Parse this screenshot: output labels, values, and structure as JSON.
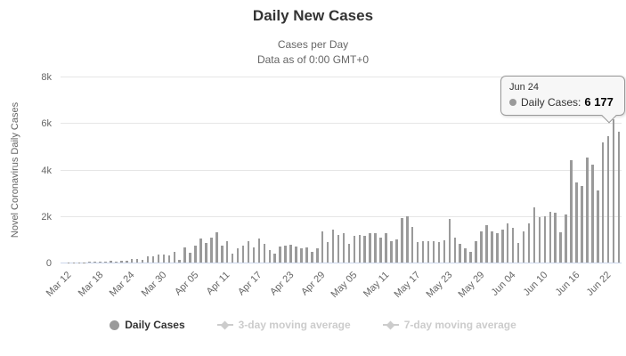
{
  "header": {
    "title": "Daily New Cases",
    "subtitle1": "Cases per Day",
    "subtitle2": "Data as of 0:00 GMT+0"
  },
  "y_axis": {
    "title": "Novel Coronavirus Daily Cases",
    "ticks": [
      {
        "label": "8k",
        "value": 8000
      },
      {
        "label": "6k",
        "value": 6000
      },
      {
        "label": "4k",
        "value": 4000
      },
      {
        "label": "2k",
        "value": 2000
      },
      {
        "label": "0",
        "value": 0
      }
    ]
  },
  "x_axis": {
    "ticks": [
      {
        "label": "Mar 12",
        "index": 0
      },
      {
        "label": "Mar 18",
        "index": 6
      },
      {
        "label": "Mar 24",
        "index": 12
      },
      {
        "label": "Mar 30",
        "index": 18
      },
      {
        "label": "Apr 05",
        "index": 24
      },
      {
        "label": "Apr 11",
        "index": 30
      },
      {
        "label": "Apr 17",
        "index": 36
      },
      {
        "label": "Apr 23",
        "index": 42
      },
      {
        "label": "Apr 29",
        "index": 48
      },
      {
        "label": "May 05",
        "index": 54
      },
      {
        "label": "May 11",
        "index": 60
      },
      {
        "label": "May 17",
        "index": 66
      },
      {
        "label": "May 23",
        "index": 72
      },
      {
        "label": "May 29",
        "index": 78
      },
      {
        "label": "Jun 04",
        "index": 84
      },
      {
        "label": "Jun 10",
        "index": 90
      },
      {
        "label": "Jun 16",
        "index": 96
      },
      {
        "label": "Jun 22",
        "index": 102
      }
    ]
  },
  "tooltip": {
    "date": "Jun 24",
    "series": "Daily Cases:",
    "value": "6 177"
  },
  "legend": [
    {
      "label": "Daily Cases",
      "enabled": true
    },
    {
      "label": "3-day moving average",
      "enabled": false
    },
    {
      "label": "7-day moving average",
      "enabled": false
    }
  ],
  "colors": {
    "bar": "#9a9a9a",
    "grid": "#e6e6e6",
    "axis_line": "#ccd6eb",
    "text": "#333333",
    "muted": "#666666",
    "disabled": "#cccccc",
    "tooltip_border": "#999999"
  },
  "chart_data": {
    "type": "bar",
    "title": "Daily New Cases",
    "subtitle": [
      "Cases per Day",
      "Data as of 0:00 GMT+0"
    ],
    "ylabel": "Novel Coronavirus Daily Cases",
    "xlabel": "",
    "ylim": [
      0,
      8000
    ],
    "grid": true,
    "legend_position": "bottom",
    "series_name": "Daily Cases",
    "hidden_series": [
      "3-day moving average",
      "7-day moving average"
    ],
    "hovered_point": {
      "index": 104,
      "label": "Jun 24",
      "value": 6177
    },
    "x": [
      "Mar 12",
      "Mar 13",
      "Mar 14",
      "Mar 15",
      "Mar 16",
      "Mar 17",
      "Mar 18",
      "Mar 19",
      "Mar 20",
      "Mar 21",
      "Mar 22",
      "Mar 23",
      "Mar 24",
      "Mar 25",
      "Mar 26",
      "Mar 27",
      "Mar 28",
      "Mar 29",
      "Mar 30",
      "Mar 31",
      "Apr 01",
      "Apr 02",
      "Apr 03",
      "Apr 04",
      "Apr 05",
      "Apr 06",
      "Apr 07",
      "Apr 08",
      "Apr 09",
      "Apr 10",
      "Apr 11",
      "Apr 12",
      "Apr 13",
      "Apr 14",
      "Apr 15",
      "Apr 16",
      "Apr 17",
      "Apr 18",
      "Apr 19",
      "Apr 20",
      "Apr 21",
      "Apr 22",
      "Apr 23",
      "Apr 24",
      "Apr 25",
      "Apr 26",
      "Apr 27",
      "Apr 28",
      "Apr 29",
      "Apr 30",
      "May 01",
      "May 02",
      "May 03",
      "May 04",
      "May 05",
      "May 06",
      "May 07",
      "May 08",
      "May 09",
      "May 10",
      "May 11",
      "May 12",
      "May 13",
      "May 14",
      "May 15",
      "May 16",
      "May 17",
      "May 18",
      "May 19",
      "May 20",
      "May 21",
      "May 22",
      "May 23",
      "May 24",
      "May 25",
      "May 26",
      "May 27",
      "May 28",
      "May 29",
      "May 30",
      "May 31",
      "Jun 01",
      "Jun 02",
      "Jun 03",
      "Jun 04",
      "Jun 05",
      "Jun 06",
      "Jun 07",
      "Jun 08",
      "Jun 09",
      "Jun 10",
      "Jun 11",
      "Jun 12",
      "Jun 13",
      "Jun 14",
      "Jun 15",
      "Jun 16",
      "Jun 17",
      "Jun 18",
      "Jun 19",
      "Jun 20",
      "Jun 21",
      "Jun 22",
      "Jun 23",
      "Jun 24",
      "Jun 25"
    ],
    "values": [
      2,
      4,
      8,
      12,
      18,
      28,
      52,
      48,
      55,
      68,
      50,
      92,
      70,
      150,
      160,
      110,
      280,
      265,
      360,
      330,
      320,
      460,
      130,
      650,
      425,
      710,
      1050,
      830,
      1090,
      1290,
      730,
      930,
      400,
      600,
      730,
      930,
      640,
      1040,
      800,
      530,
      400,
      690,
      730,
      770,
      690,
      600,
      670,
      470,
      600,
      1330,
      870,
      1400,
      1200,
      1270,
      800,
      1130,
      1200,
      1130,
      1270,
      1270,
      1070,
      1270,
      930,
      1000,
      1930,
      2000,
      1530,
      870,
      930,
      930,
      905,
      870,
      960,
      1870,
      1070,
      800,
      600,
      470,
      930,
      1330,
      1600,
      1330,
      1270,
      1400,
      1680,
      1480,
      840,
      1350,
      1680,
      2390,
      1940,
      2000,
      2190,
      2130,
      1290,
      2060,
      4410,
      3460,
      3290,
      4520,
      4230,
      3100,
      5160,
      5450,
      6177,
      5611
    ]
  }
}
